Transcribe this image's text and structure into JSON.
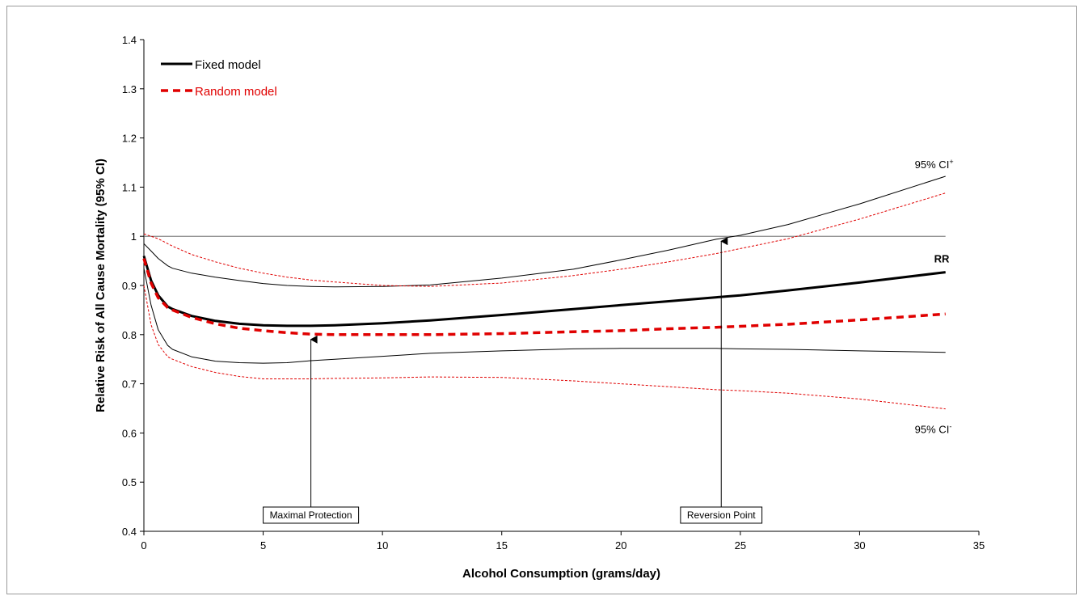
{
  "chart_data": {
    "type": "line",
    "xlabel": "Alcohol Consumption (grams/day)",
    "ylabel": "Relative Risk of All Cause Mortality (95% CI)",
    "xlim": [
      0,
      35
    ],
    "ylim": [
      0.4,
      1.4
    ],
    "x_ticks": [
      "0",
      "5",
      "10",
      "15",
      "20",
      "25",
      "30",
      "35"
    ],
    "y_ticks": [
      "0.4",
      "0.5",
      "0.6",
      "0.7",
      "0.8",
      "0.9",
      "1",
      "1.1",
      "1.2",
      "1.3",
      "1.4"
    ],
    "grid": false,
    "legend_position": "top-left",
    "reference_line": 1.0,
    "x": [
      0,
      0.3,
      0.6,
      1,
      1.2,
      2,
      3,
      4,
      5,
      6,
      7,
      8,
      10,
      12,
      15,
      18,
      20,
      22,
      24,
      25,
      27,
      30,
      33.6
    ],
    "series": [
      {
        "name": "Fixed model",
        "color": "#000000",
        "style": "solid-thick",
        "values": [
          0.96,
          0.91,
          0.88,
          0.857,
          0.852,
          0.838,
          0.828,
          0.822,
          0.819,
          0.818,
          0.818,
          0.819,
          0.823,
          0.829,
          0.84,
          0.852,
          0.86,
          0.868,
          0.876,
          0.88,
          0.89,
          0.906,
          0.927
        ]
      },
      {
        "name": "Random model",
        "color": "#e00000",
        "style": "dashed-thick",
        "values": [
          0.955,
          0.905,
          0.875,
          0.855,
          0.85,
          0.835,
          0.822,
          0.813,
          0.808,
          0.804,
          0.801,
          0.8,
          0.8,
          0.8,
          0.802,
          0.806,
          0.808,
          0.812,
          0.815,
          0.817,
          0.821,
          0.83,
          0.842
        ]
      },
      {
        "name": "",
        "color": "#000000",
        "style": "solid-thin",
        "values": [
          0.985,
          0.97,
          0.955,
          0.94,
          0.935,
          0.925,
          0.917,
          0.91,
          0.904,
          0.9,
          0.898,
          0.897,
          0.898,
          0.901,
          0.915,
          0.933,
          0.952,
          0.972,
          0.994,
          1.002,
          1.024,
          1.066,
          1.122
        ]
      },
      {
        "name": "",
        "color": "#000000",
        "style": "solid-thin",
        "values": [
          0.935,
          0.86,
          0.81,
          0.778,
          0.77,
          0.755,
          0.746,
          0.743,
          0.742,
          0.743,
          0.747,
          0.75,
          0.756,
          0.762,
          0.767,
          0.771,
          0.772,
          0.772,
          0.772,
          0.771,
          0.77,
          0.767,
          0.764
        ]
      },
      {
        "name": "",
        "color": "#e00000",
        "style": "dotted-thin",
        "values": [
          1.005,
          1.0,
          0.995,
          0.985,
          0.98,
          0.963,
          0.948,
          0.935,
          0.925,
          0.917,
          0.911,
          0.907,
          0.9,
          0.898,
          0.905,
          0.92,
          0.933,
          0.948,
          0.965,
          0.975,
          0.995,
          1.035,
          1.088
        ]
      },
      {
        "name": "",
        "color": "#e00000",
        "style": "dotted-thin",
        "values": [
          0.9,
          0.82,
          0.78,
          0.755,
          0.75,
          0.735,
          0.723,
          0.715,
          0.71,
          0.71,
          0.71,
          0.711,
          0.712,
          0.714,
          0.713,
          0.706,
          0.7,
          0.694,
          0.688,
          0.686,
          0.681,
          0.669,
          0.649
        ]
      }
    ],
    "annotations": [
      {
        "text": "Maximal Protection",
        "x": 7,
        "y": 0.8
      },
      {
        "text": "Reversion Point",
        "x": 24.2,
        "y": 1.0
      }
    ],
    "series_labels": {
      "rr": "RR",
      "ci_upper": "95% CI",
      "ci_upper_sup": "+",
      "ci_lower": "95% CI",
      "ci_lower_sup": "-"
    }
  }
}
